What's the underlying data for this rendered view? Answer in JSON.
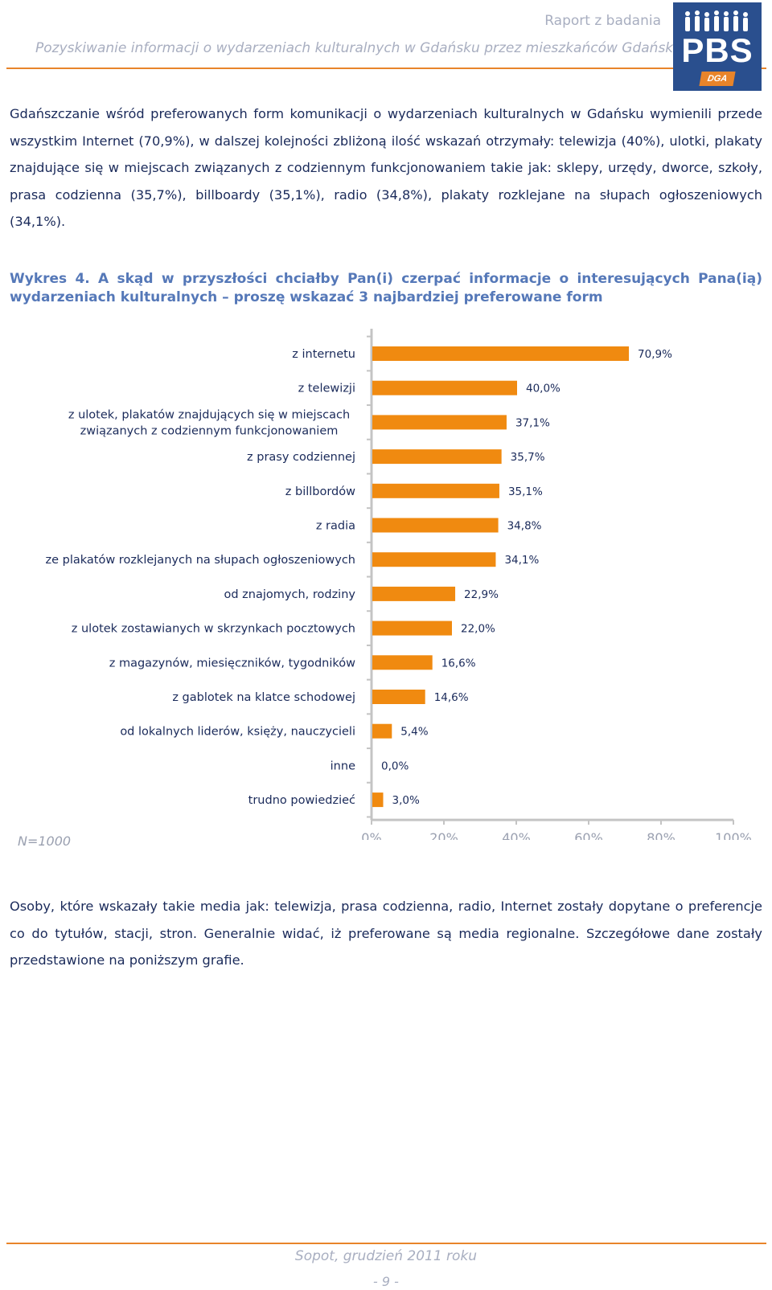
{
  "header": {
    "title": "Raport z badania",
    "subtitle": "Pozyskiwanie informacji o wydarzeniach kulturalnych w Gdańsku przez mieszkańców Gdańska.",
    "logo_text": "PBS",
    "logo_sub": "DGA"
  },
  "intro_text": "Gdańszczanie wśród preferowanych form komunikacji o wydarzeniach kulturalnych w Gdańsku wymienili przede wszystkim Internet (70,9%), w dalszej kolejności zbliżoną ilość wskazań otrzymały: telewizja (40%), ulotki, plakaty znajdujące się w miejscach związanych z codziennym funkcjonowaniem takie jak: sklepy, urzędy, dworce, szkoły, prasa codzienna (35,7%), billboardy (35,1%), radio (34,8%), plakaty rozklejane na słupach ogłoszeniowych (34,1%).",
  "caption": "Wykres 4. A skąd w przyszłości chciałby Pan(i) czerpać informacje o interesujących Pana(ią) wydarzeniach kulturalnych – proszę wskazać 3 najbardziej preferowane form",
  "n_label": "N=1000",
  "outro_text": "Osoby, które wskazały takie media jak: telewizja, prasa codzienna, radio, Internet zostały dopytane o preferencje co do tytułów, stacji, stron. Generalnie widać, iż preferowane są media regionalne. Szczegółowe dane zostały przedstawione na poniższym grafie.",
  "footer": {
    "date": "Sopot, grudzień 2011 roku",
    "page": "- 9 -"
  },
  "chart_data": {
    "type": "bar",
    "orientation": "horizontal",
    "categories": [
      "z internetu",
      "z telewizji",
      "z ulotek, plakatów znajdujących się w miejscach|związanych z codziennym funkcjonowaniem",
      "z prasy codziennej",
      "z billbordów",
      "z radia",
      "ze plakatów rozklejanych na słupach ogłoszeniowych",
      "od znajomych, rodziny",
      "z ulotek zostawianych w skrzynkach pocztowych",
      "z magazynów, miesięczników, tygodników",
      "z gablotek na klatce schodowej",
      "od lokalnych liderów, księży, nauczycieli",
      "inne",
      "trudno powiedzieć"
    ],
    "values": [
      70.9,
      40.0,
      37.1,
      35.7,
      35.1,
      34.8,
      34.1,
      22.9,
      22.0,
      16.6,
      14.6,
      5.4,
      0.0,
      3.0
    ],
    "value_labels": [
      "70,9%",
      "40,0%",
      "37,1%",
      "35,7%",
      "35,1%",
      "34,8%",
      "34,1%",
      "22,9%",
      "22,0%",
      "16,6%",
      "14,6%",
      "5,4%",
      "0,0%",
      "3,0%"
    ],
    "x_ticks": [
      "0%",
      "20%",
      "40%",
      "60%",
      "80%",
      "100%"
    ],
    "xlim": [
      0,
      100
    ],
    "bar_color": "#f08a10",
    "grid": false
  }
}
